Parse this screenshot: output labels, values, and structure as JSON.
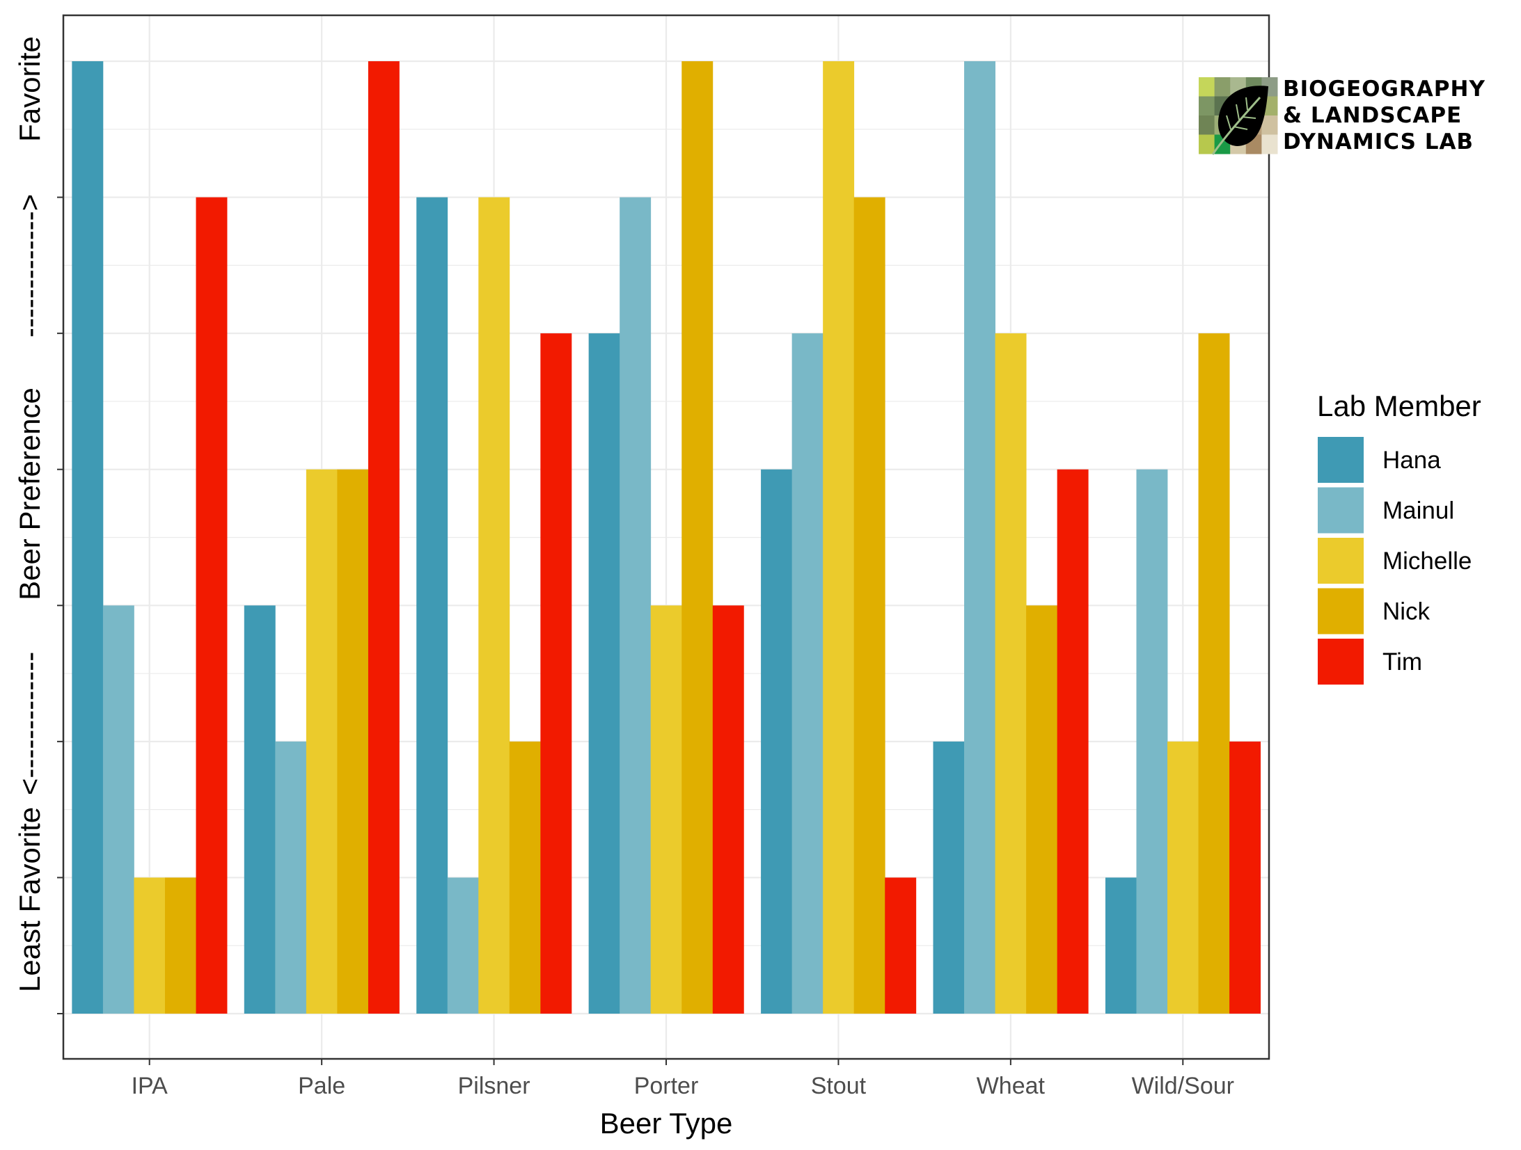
{
  "chart_data": {
    "type": "bar",
    "title": "",
    "xlabel": "Beer Type",
    "ylabel_parts": {
      "low": "Least Favorite",
      "arrow_low": "<-------------",
      "middle": "Beer Preference",
      "arrow_high": "------------->",
      "high": "Favorite"
    },
    "categories": [
      "IPA",
      "Pale",
      "Pilsner",
      "Porter",
      "Stout",
      "Wheat",
      "Wild/Sour"
    ],
    "ylim": [
      0,
      7
    ],
    "grid": true,
    "legend": {
      "title": "Lab Member",
      "position": "right"
    },
    "series": [
      {
        "name": "Hana",
        "color": "#3F9AB4",
        "values": [
          7,
          3,
          6,
          5,
          4,
          2,
          1
        ]
      },
      {
        "name": "Mainul",
        "color": "#79B8C7",
        "values": [
          3,
          2,
          1,
          6,
          5,
          7,
          4
        ]
      },
      {
        "name": "Michelle",
        "color": "#EBCB2C",
        "values": [
          1,
          4,
          6,
          3,
          7,
          5,
          2
        ]
      },
      {
        "name": "Nick",
        "color": "#E0AF00",
        "values": [
          1,
          4,
          2,
          7,
          6,
          3,
          5
        ]
      },
      {
        "name": "Tim",
        "color": "#F21A00",
        "values": [
          6,
          7,
          5,
          3,
          1,
          4,
          2
        ]
      }
    ]
  },
  "logo": {
    "lines": [
      "BIOGEOGRAPHY",
      "& LANDSCAPE",
      "DYNAMICS LAB"
    ],
    "icon": "leaf-icon"
  }
}
